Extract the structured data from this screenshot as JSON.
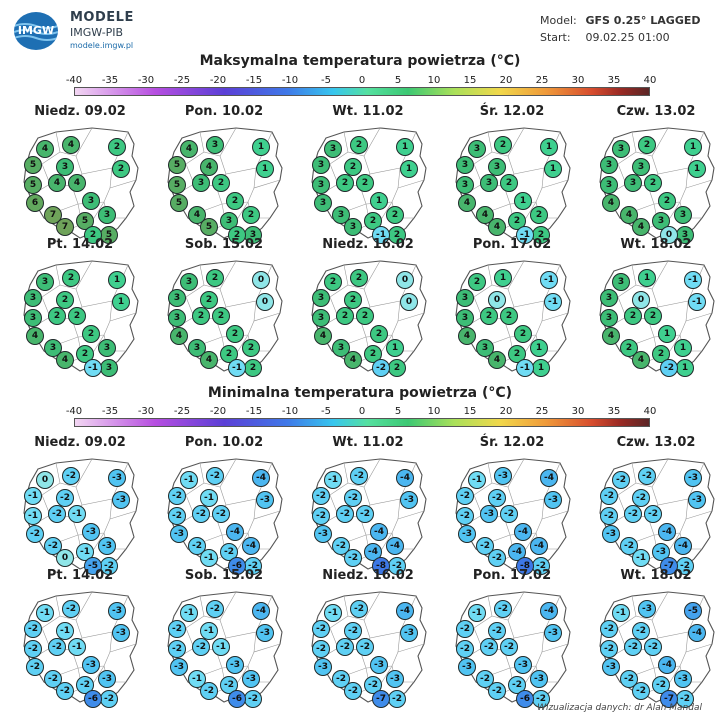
{
  "header": {
    "logo_text": "IMGW",
    "brand_title": "MODELE",
    "brand_sub": "IMGW-PIB",
    "brand_url": "modele.imgw.pl",
    "model_label": "Model:",
    "model_value": "GFS 0.25° LAGGED",
    "start_label": "Start:",
    "start_value": "09.02.25  01:00"
  },
  "colorbar": {
    "ticks": [
      "-40",
      "-35",
      "-30",
      "-25",
      "-20",
      "-15",
      "-10",
      "-5",
      "0",
      "5",
      "10",
      "15",
      "20",
      "25",
      "30",
      "35",
      "40"
    ]
  },
  "max_section": {
    "title": "Maksymalna temperatura powietrza (°C)",
    "days": [
      {
        "label": "Niedz. 09.02",
        "values": [
          4,
          4,
          2,
          5,
          3,
          2,
          5,
          4,
          6,
          4,
          7,
          3,
          7,
          5,
          3,
          5,
          2
        ]
      },
      {
        "label": "Pon. 10.02",
        "values": [
          4,
          3,
          1,
          5,
          4,
          1,
          5,
          3,
          5,
          2,
          4,
          2,
          5,
          3,
          2,
          3,
          2
        ]
      },
      {
        "label": "Wt. 11.02",
        "values": [
          3,
          2,
          1,
          3,
          2,
          1,
          3,
          2,
          3,
          2,
          3,
          1,
          3,
          2,
          2,
          2,
          -1
        ]
      },
      {
        "label": "Śr. 12.02",
        "values": [
          3,
          2,
          1,
          3,
          3,
          1,
          3,
          3,
          4,
          2,
          4,
          1,
          4,
          2,
          2,
          2,
          -1
        ]
      },
      {
        "label": "Czw. 13.02",
        "values": [
          3,
          2,
          1,
          3,
          3,
          1,
          3,
          3,
          4,
          2,
          4,
          2,
          4,
          3,
          3,
          3,
          0
        ]
      },
      {
        "label": "Pt. 14.02",
        "values": [
          3,
          2,
          1,
          3,
          2,
          1,
          3,
          2,
          4,
          2,
          3,
          2,
          4,
          2,
          3,
          3,
          -1
        ]
      },
      {
        "label": "Sob. 15.02",
        "values": [
          3,
          2,
          0,
          3,
          2,
          0,
          3,
          2,
          4,
          2,
          3,
          2,
          4,
          2,
          2,
          2,
          -1
        ]
      },
      {
        "label": "Niedz. 16.02",
        "values": [
          2,
          2,
          0,
          3,
          2,
          0,
          3,
          2,
          4,
          2,
          3,
          2,
          4,
          2,
          1,
          2,
          -2
        ]
      },
      {
        "label": "Pon. 17.02",
        "values": [
          2,
          1,
          -1,
          3,
          0,
          -1,
          3,
          2,
          4,
          2,
          3,
          2,
          4,
          2,
          1,
          1,
          -1
        ]
      },
      {
        "label": "Wt. 18.02",
        "values": [
          3,
          1,
          -1,
          3,
          0,
          -1,
          3,
          2,
          4,
          2,
          2,
          1,
          4,
          2,
          1,
          1,
          -2
        ]
      }
    ]
  },
  "min_section": {
    "title": "Minimalna temperatura powietrza (°C)",
    "days": [
      {
        "label": "Niedz. 09.02",
        "values": [
          0,
          -2,
          -3,
          -1,
          -2,
          -3,
          -1,
          -2,
          -2,
          -1,
          -2,
          -3,
          0,
          -1,
          -3,
          -2,
          -5
        ]
      },
      {
        "label": "Pon. 10.02",
        "values": [
          -1,
          -2,
          -4,
          -2,
          -1,
          -3,
          -2,
          -2,
          -3,
          -2,
          -2,
          -4,
          -1,
          -2,
          -4,
          -2,
          -6
        ]
      },
      {
        "label": "Wt. 11.02",
        "values": [
          -1,
          -2,
          -4,
          -2,
          -2,
          -3,
          -2,
          -2,
          -3,
          -2,
          -2,
          -4,
          -2,
          -4,
          -4,
          -2,
          -8
        ]
      },
      {
        "label": "Śr. 12.02",
        "values": [
          -1,
          -3,
          -4,
          -2,
          -2,
          -3,
          -2,
          -3,
          -3,
          -2,
          -2,
          -4,
          -2,
          -4,
          -4,
          -2,
          -8
        ]
      },
      {
        "label": "Czw. 13.02",
        "values": [
          -2,
          -2,
          -3,
          -2,
          -2,
          -3,
          -2,
          -2,
          -3,
          -2,
          -2,
          -4,
          -1,
          -3,
          -4,
          -2,
          -7
        ]
      },
      {
        "label": "Pt. 14.02",
        "values": [
          -1,
          -2,
          -3,
          -2,
          -1,
          -3,
          -2,
          -2,
          -2,
          -1,
          -2,
          -3,
          -2,
          -2,
          -3,
          -2,
          -6
        ]
      },
      {
        "label": "Sob. 15.02",
        "values": [
          -1,
          -2,
          -4,
          -2,
          -1,
          -3,
          -2,
          -2,
          -3,
          -1,
          -1,
          -3,
          -2,
          -2,
          -3,
          -2,
          -6
        ]
      },
      {
        "label": "Niedz. 16.02",
        "values": [
          -1,
          -2,
          -4,
          -2,
          -2,
          -3,
          -2,
          -2,
          -3,
          -2,
          -2,
          -3,
          -2,
          -2,
          -3,
          -2,
          -7
        ]
      },
      {
        "label": "Pon. 17.02",
        "values": [
          -1,
          -2,
          -4,
          -2,
          -2,
          -3,
          -2,
          -2,
          -3,
          -2,
          -2,
          -3,
          -2,
          -2,
          -3,
          -2,
          -6
        ]
      },
      {
        "label": "Wt. 18.02",
        "values": [
          -1,
          -3,
          -5,
          -2,
          -2,
          -4,
          -2,
          -2,
          -3,
          -2,
          -2,
          -4,
          -2,
          -2,
          -3,
          -2,
          -7
        ]
      }
    ]
  },
  "footer": {
    "credit": "Wizualizacja danych: dr Alan Mandal"
  }
}
